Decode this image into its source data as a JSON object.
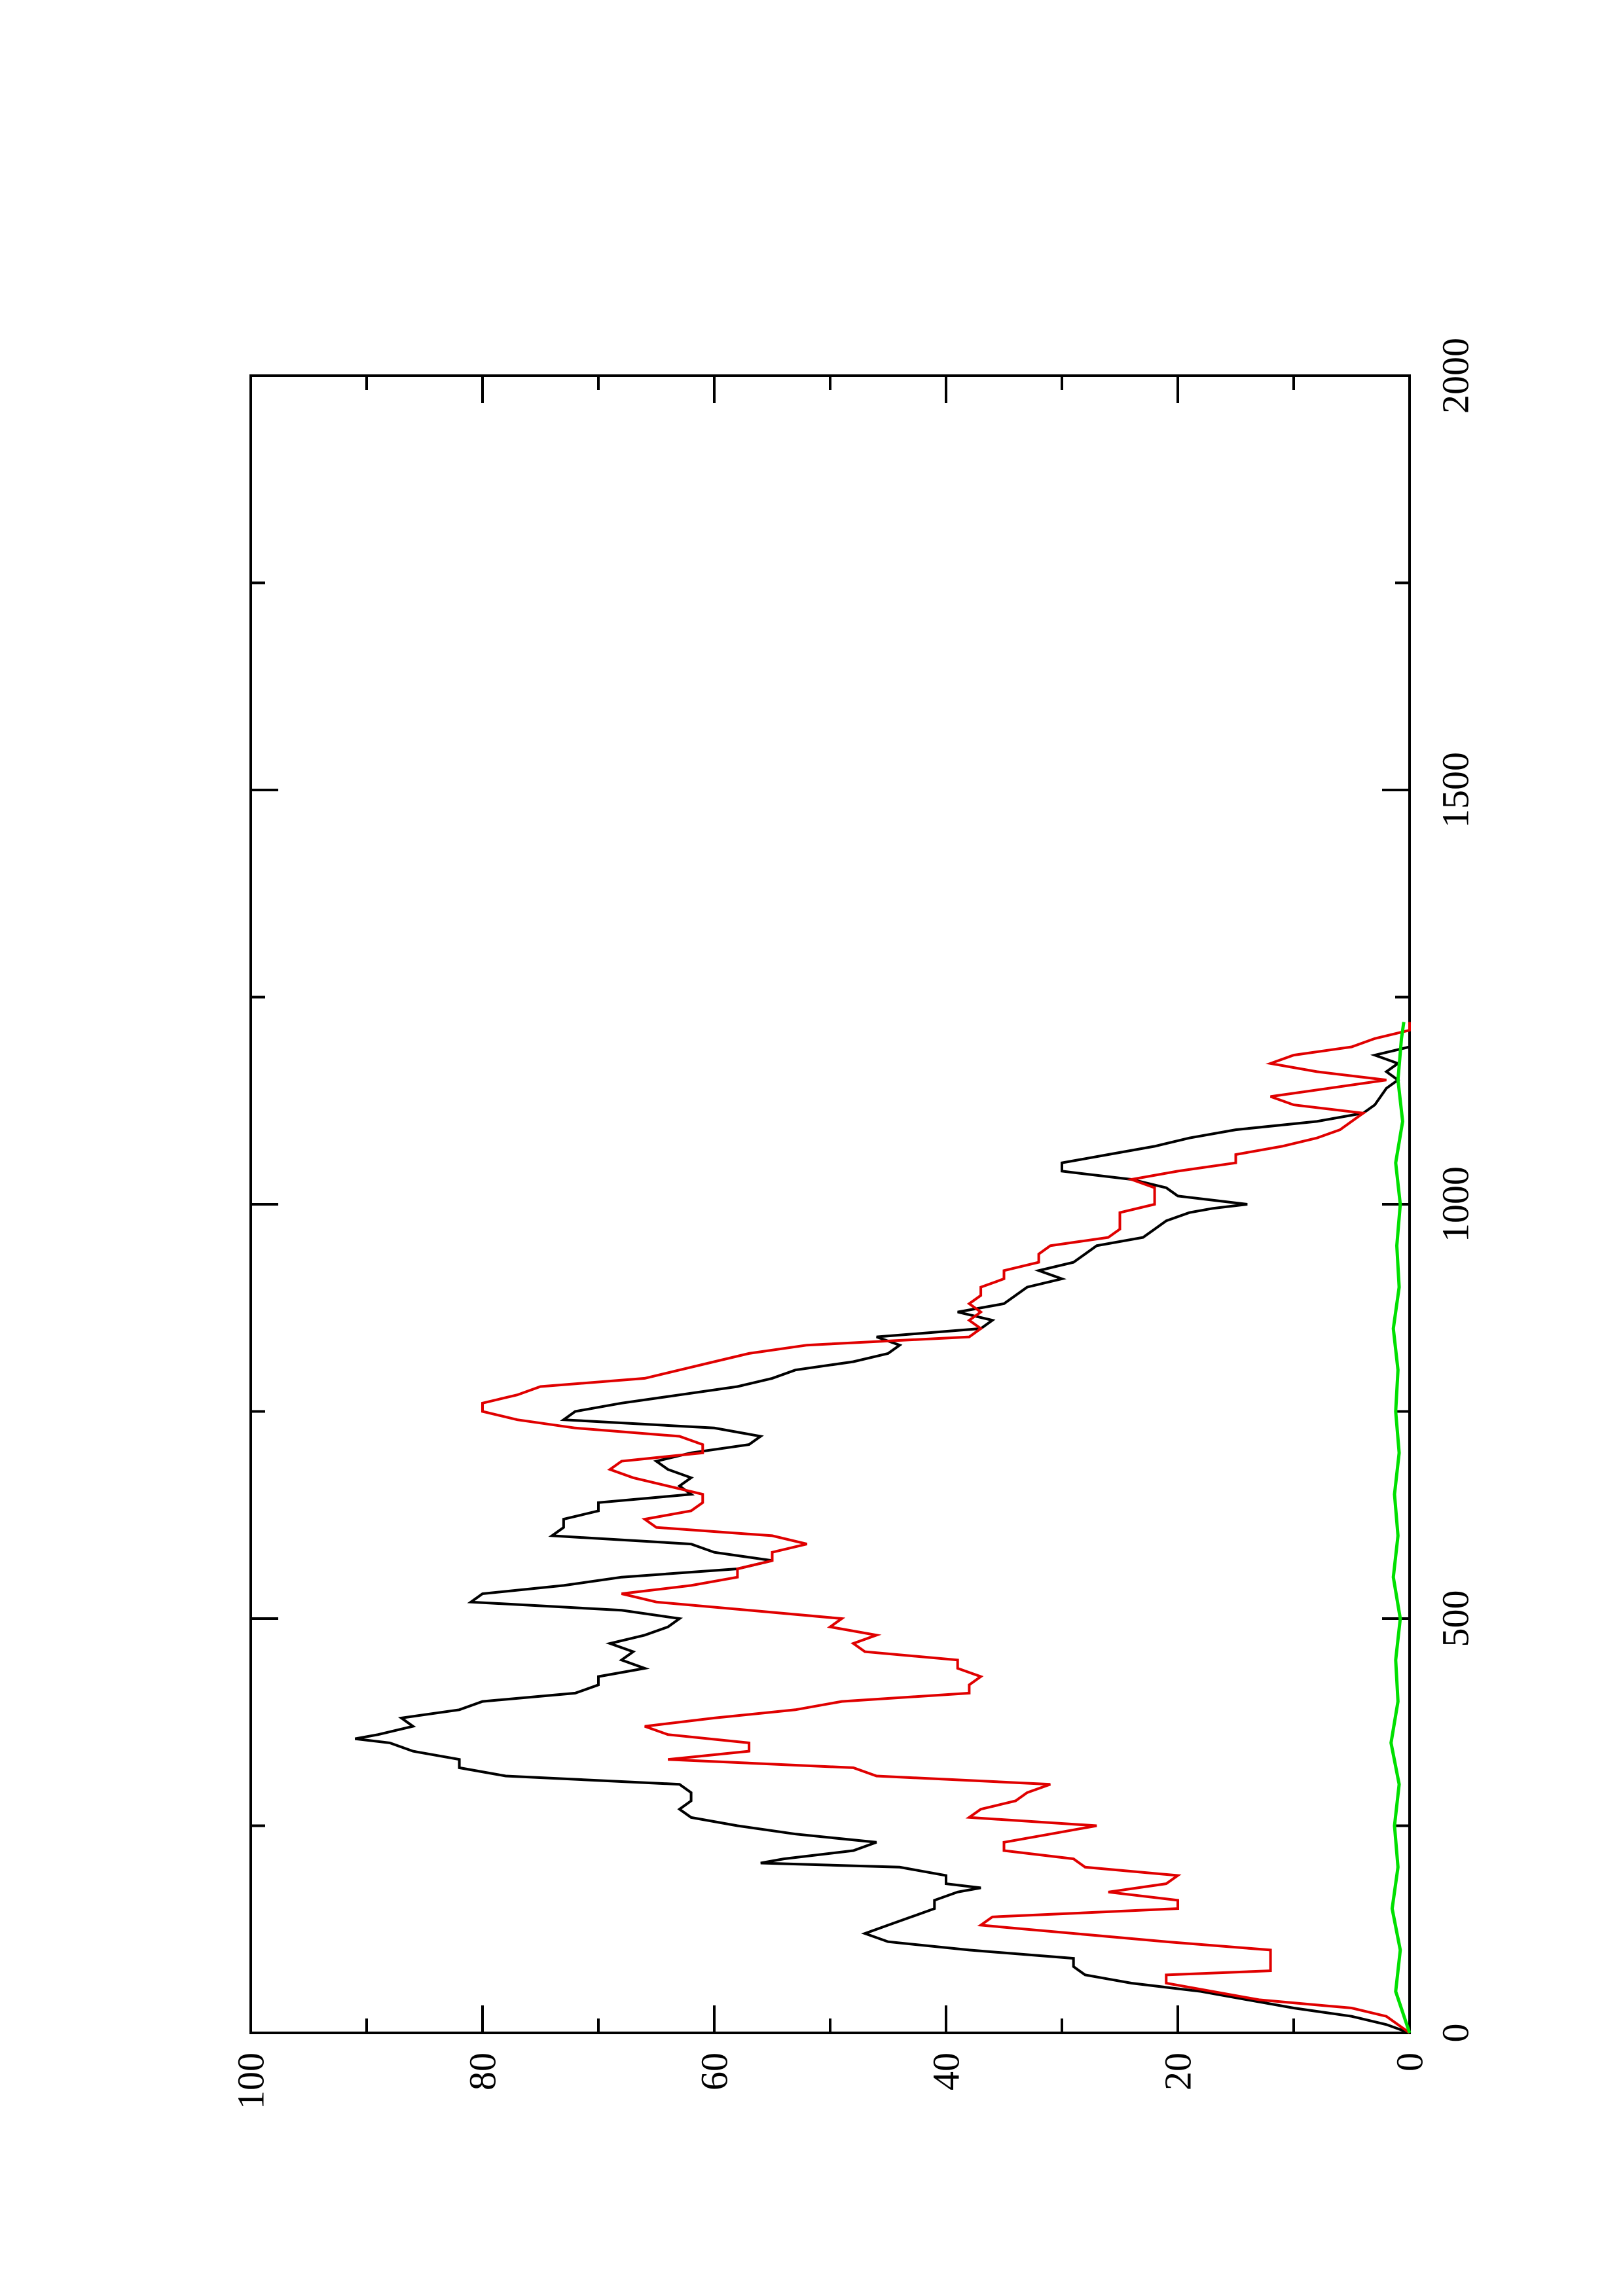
{
  "chart_data": {
    "type": "line",
    "orientation": "rotated 90 degrees counter-clockwise (landscape plot printed on portrait page)",
    "title": "",
    "xlabel": "",
    "ylabel": "",
    "xlim": [
      0,
      2000
    ],
    "ylim": [
      0,
      100
    ],
    "x_ticks": [
      0,
      500,
      1000,
      1500,
      2000
    ],
    "x_tick_labels": [
      "0",
      "500",
      "1000",
      "1500",
      "2000"
    ],
    "y_ticks": [
      0,
      20,
      40,
      60,
      80,
      100
    ],
    "y_tick_labels": [
      "0",
      "20",
      "40",
      "60",
      "80",
      "100"
    ],
    "grid": false,
    "legend": "none",
    "series": [
      {
        "color": "#000000",
        "points": [
          [
            0,
            0
          ],
          [
            10,
            2
          ],
          [
            20,
            5
          ],
          [
            30,
            10
          ],
          [
            40,
            14
          ],
          [
            50,
            18
          ],
          [
            60,
            24
          ],
          [
            65,
            26
          ],
          [
            70,
            28
          ],
          [
            80,
            29
          ],
          [
            90,
            29
          ],
          [
            100,
            38
          ],
          [
            110,
            45
          ],
          [
            120,
            47
          ],
          [
            130,
            45
          ],
          [
            140,
            43
          ],
          [
            150,
            41
          ],
          [
            160,
            41
          ],
          [
            170,
            39
          ],
          [
            175,
            37
          ],
          [
            180,
            40
          ],
          [
            190,
            40
          ],
          [
            200,
            44
          ],
          [
            205,
            56
          ],
          [
            210,
            54
          ],
          [
            220,
            48
          ],
          [
            230,
            46
          ],
          [
            240,
            53
          ],
          [
            250,
            58
          ],
          [
            260,
            62
          ],
          [
            270,
            63
          ],
          [
            280,
            62
          ],
          [
            290,
            62
          ],
          [
            300,
            63
          ],
          [
            310,
            78
          ],
          [
            320,
            82
          ],
          [
            330,
            82
          ],
          [
            340,
            86
          ],
          [
            350,
            88
          ],
          [
            355,
            91
          ],
          [
            360,
            89
          ],
          [
            370,
            86
          ],
          [
            380,
            87
          ],
          [
            390,
            82
          ],
          [
            400,
            80
          ],
          [
            410,
            72
          ],
          [
            420,
            70
          ],
          [
            430,
            70
          ],
          [
            440,
            66
          ],
          [
            450,
            68
          ],
          [
            460,
            67
          ],
          [
            470,
            69
          ],
          [
            480,
            66
          ],
          [
            490,
            64
          ],
          [
            500,
            63
          ],
          [
            510,
            68
          ],
          [
            520,
            81
          ],
          [
            530,
            80
          ],
          [
            540,
            73
          ],
          [
            550,
            68
          ],
          [
            560,
            58
          ],
          [
            570,
            55
          ],
          [
            580,
            60
          ],
          [
            590,
            62
          ],
          [
            600,
            74
          ],
          [
            610,
            73
          ],
          [
            620,
            73
          ],
          [
            630,
            70
          ],
          [
            640,
            70
          ],
          [
            650,
            62
          ],
          [
            660,
            63
          ],
          [
            670,
            62
          ],
          [
            680,
            64
          ],
          [
            690,
            65
          ],
          [
            700,
            62
          ],
          [
            710,
            57
          ],
          [
            720,
            56
          ],
          [
            730,
            60
          ],
          [
            740,
            73
          ],
          [
            750,
            72
          ],
          [
            760,
            68
          ],
          [
            770,
            63
          ],
          [
            780,
            58
          ],
          [
            790,
            55
          ],
          [
            800,
            53
          ],
          [
            810,
            48
          ],
          [
            820,
            45
          ],
          [
            830,
            44
          ],
          [
            840,
            46
          ],
          [
            850,
            37
          ],
          [
            860,
            36
          ],
          [
            870,
            39
          ],
          [
            880,
            35
          ],
          [
            890,
            34
          ],
          [
            900,
            33
          ],
          [
            910,
            30
          ],
          [
            920,
            32
          ],
          [
            930,
            29
          ],
          [
            940,
            28
          ],
          [
            950,
            27
          ],
          [
            960,
            23
          ],
          [
            970,
            22
          ],
          [
            980,
            21
          ],
          [
            990,
            19
          ],
          [
            995,
            17
          ],
          [
            1000,
            14
          ],
          [
            1010,
            20
          ],
          [
            1020,
            21
          ],
          [
            1030,
            24
          ],
          [
            1040,
            30
          ],
          [
            1050,
            30
          ],
          [
            1060,
            26
          ],
          [
            1070,
            22
          ],
          [
            1080,
            19
          ],
          [
            1090,
            15
          ],
          [
            1100,
            8
          ],
          [
            1110,
            4
          ],
          [
            1120,
            3
          ],
          [
            1140,
            2
          ],
          [
            1150,
            1
          ],
          [
            1160,
            2
          ],
          [
            1170,
            1
          ],
          [
            1180,
            3
          ],
          [
            1190,
            0
          ],
          [
            1200,
            0
          ],
          [
            1210,
            0
          ],
          [
            1220,
            0
          ]
        ]
      },
      {
        "color": "#e00000",
        "points": [
          [
            0,
            0
          ],
          [
            20,
            2
          ],
          [
            30,
            5
          ],
          [
            40,
            13
          ],
          [
            60,
            21
          ],
          [
            70,
            21
          ],
          [
            75,
            12
          ],
          [
            100,
            12
          ],
          [
            110,
            21
          ],
          [
            130,
            37
          ],
          [
            140,
            36
          ],
          [
            150,
            20
          ],
          [
            160,
            20
          ],
          [
            170,
            26
          ],
          [
            180,
            21
          ],
          [
            190,
            20
          ],
          [
            200,
            28
          ],
          [
            210,
            29
          ],
          [
            220,
            35
          ],
          [
            230,
            35
          ],
          [
            240,
            31
          ],
          [
            250,
            27
          ],
          [
            260,
            38
          ],
          [
            270,
            37
          ],
          [
            280,
            34
          ],
          [
            290,
            33
          ],
          [
            300,
            31
          ],
          [
            310,
            46
          ],
          [
            320,
            48
          ],
          [
            330,
            64
          ],
          [
            340,
            57
          ],
          [
            350,
            57
          ],
          [
            360,
            64
          ],
          [
            370,
            66
          ],
          [
            380,
            60
          ],
          [
            390,
            53
          ],
          [
            400,
            49
          ],
          [
            410,
            38
          ],
          [
            420,
            38
          ],
          [
            430,
            37
          ],
          [
            440,
            39
          ],
          [
            450,
            39
          ],
          [
            460,
            47
          ],
          [
            470,
            48
          ],
          [
            480,
            46
          ],
          [
            490,
            50
          ],
          [
            500,
            49
          ],
          [
            510,
            57
          ],
          [
            520,
            65
          ],
          [
            530,
            68
          ],
          [
            540,
            62
          ],
          [
            550,
            58
          ],
          [
            560,
            58
          ],
          [
            570,
            55
          ],
          [
            580,
            55
          ],
          [
            590,
            52
          ],
          [
            600,
            55
          ],
          [
            610,
            65
          ],
          [
            620,
            66
          ],
          [
            630,
            62
          ],
          [
            640,
            61
          ],
          [
            650,
            61
          ],
          [
            660,
            64
          ],
          [
            670,
            67
          ],
          [
            680,
            69
          ],
          [
            690,
            68
          ],
          [
            700,
            61
          ],
          [
            710,
            61
          ],
          [
            720,
            63
          ],
          [
            730,
            72
          ],
          [
            740,
            77
          ],
          [
            750,
            80
          ],
          [
            760,
            80
          ],
          [
            770,
            77
          ],
          [
            780,
            75
          ],
          [
            790,
            66
          ],
          [
            800,
            63
          ],
          [
            810,
            60
          ],
          [
            820,
            57
          ],
          [
            830,
            52
          ],
          [
            840,
            38
          ],
          [
            850,
            37
          ],
          [
            860,
            38
          ],
          [
            870,
            37
          ],
          [
            880,
            38
          ],
          [
            890,
            37
          ],
          [
            900,
            37
          ],
          [
            910,
            35
          ],
          [
            920,
            35
          ],
          [
            930,
            32
          ],
          [
            940,
            32
          ],
          [
            950,
            31
          ],
          [
            960,
            26
          ],
          [
            970,
            25
          ],
          [
            980,
            25
          ],
          [
            990,
            25
          ],
          [
            1000,
            22
          ],
          [
            1010,
            22
          ],
          [
            1020,
            22
          ],
          [
            1030,
            24
          ],
          [
            1040,
            20
          ],
          [
            1050,
            15
          ],
          [
            1060,
            15
          ],
          [
            1070,
            11
          ],
          [
            1080,
            8
          ],
          [
            1090,
            6
          ],
          [
            1100,
            5
          ],
          [
            1110,
            4
          ],
          [
            1120,
            10
          ],
          [
            1130,
            12
          ],
          [
            1140,
            7
          ],
          [
            1150,
            2
          ],
          [
            1160,
            8
          ],
          [
            1170,
            12
          ],
          [
            1180,
            10
          ],
          [
            1190,
            5
          ],
          [
            1200,
            3
          ],
          [
            1210,
            0
          ],
          [
            1220,
            0
          ]
        ]
      },
      {
        "color": "#00e000",
        "points": [
          [
            0,
            0
          ],
          [
            50,
            1.2
          ],
          [
            100,
            0.8
          ],
          [
            150,
            1.5
          ],
          [
            200,
            1.0
          ],
          [
            250,
            1.3
          ],
          [
            300,
            0.9
          ],
          [
            350,
            1.6
          ],
          [
            400,
            1.0
          ],
          [
            450,
            1.2
          ],
          [
            500,
            0.8
          ],
          [
            550,
            1.4
          ],
          [
            600,
            1.0
          ],
          [
            650,
            1.3
          ],
          [
            700,
            0.9
          ],
          [
            750,
            1.2
          ],
          [
            800,
            1.0
          ],
          [
            850,
            1.4
          ],
          [
            900,
            0.9
          ],
          [
            950,
            1.1
          ],
          [
            1000,
            0.8
          ],
          [
            1050,
            1.2
          ],
          [
            1100,
            0.6
          ],
          [
            1150,
            1.0
          ],
          [
            1200,
            0.7
          ],
          [
            1220,
            0.5
          ]
        ]
      }
    ]
  }
}
